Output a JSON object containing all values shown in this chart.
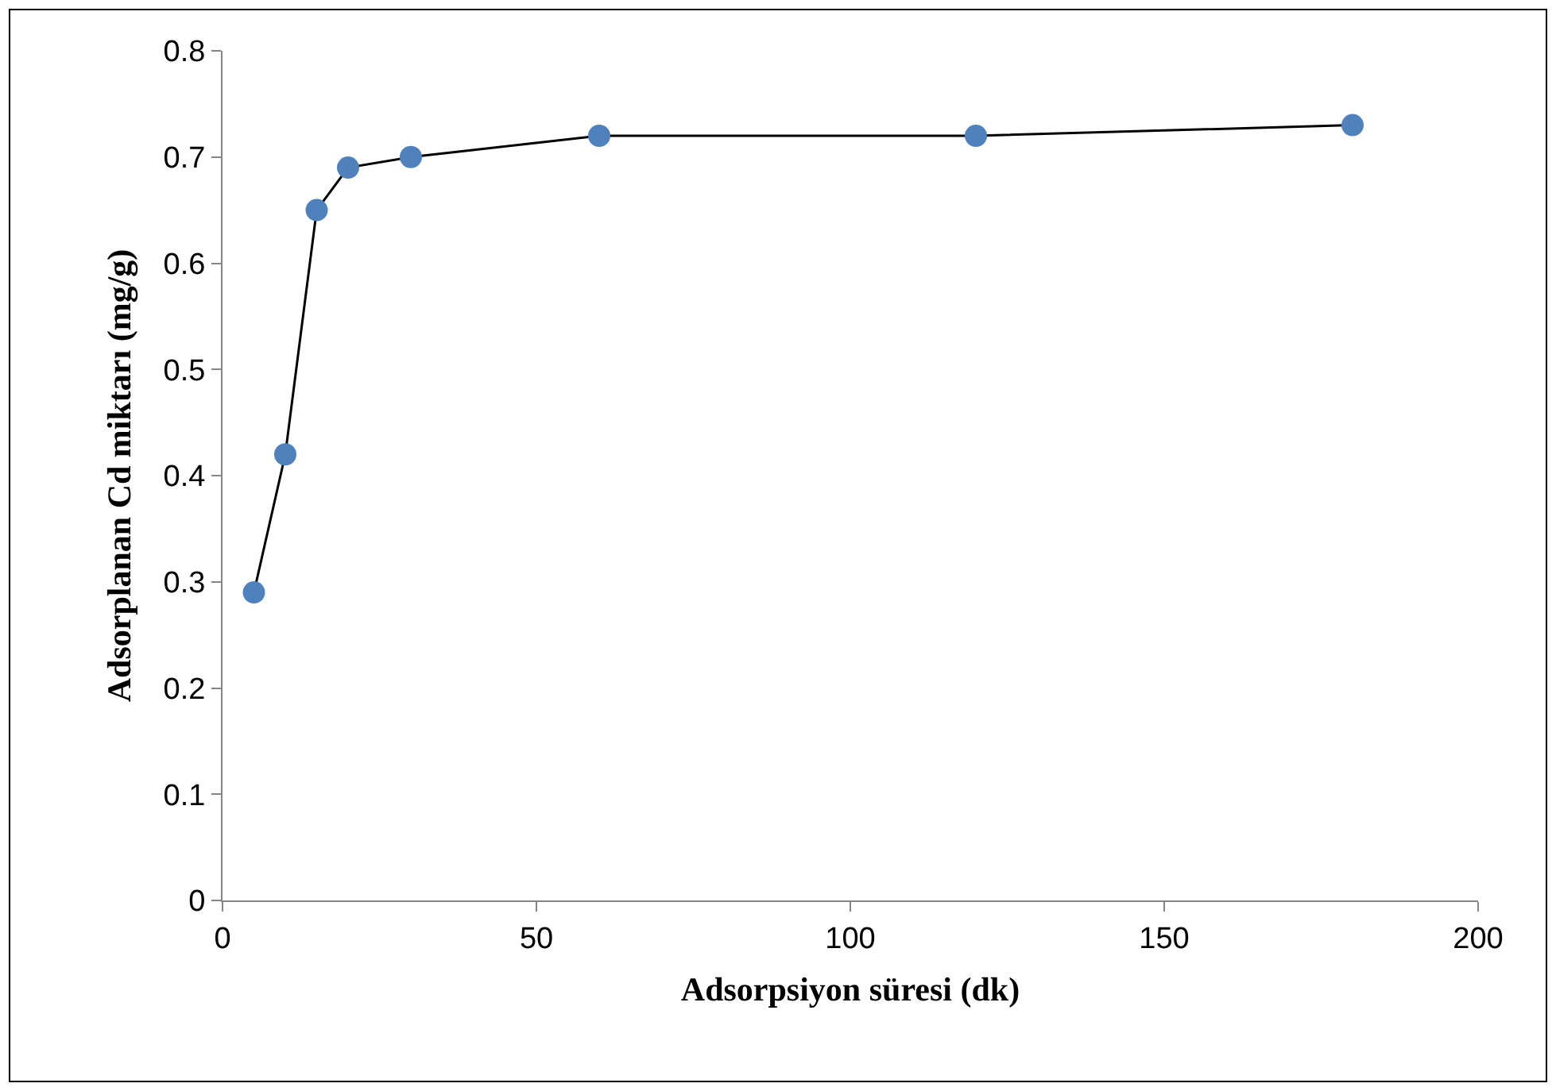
{
  "chart_data": {
    "type": "line",
    "xlabel": "Adsorpsiyon süresi (dk)",
    "ylabel": "Adsorplanan Cd miktarı (mg/g)",
    "x": [
      5,
      10,
      15,
      20,
      30,
      60,
      120,
      180
    ],
    "series": [
      {
        "color": "#4f81bd",
        "values": [
          0.29,
          0.42,
          0.65,
          0.69,
          0.7,
          0.72,
          0.72,
          0.73
        ]
      }
    ],
    "xlim": [
      0,
      200
    ],
    "xticks": [
      0,
      50,
      100,
      150,
      200
    ],
    "ylim": [
      0,
      0.8
    ],
    "yticks": [
      {
        "value": 0,
        "label": "0"
      },
      0.1,
      0.2,
      0.3,
      0.4,
      0.5,
      0.6,
      0.7,
      0.8
    ],
    "marker": "circle",
    "line_style": "solid"
  }
}
